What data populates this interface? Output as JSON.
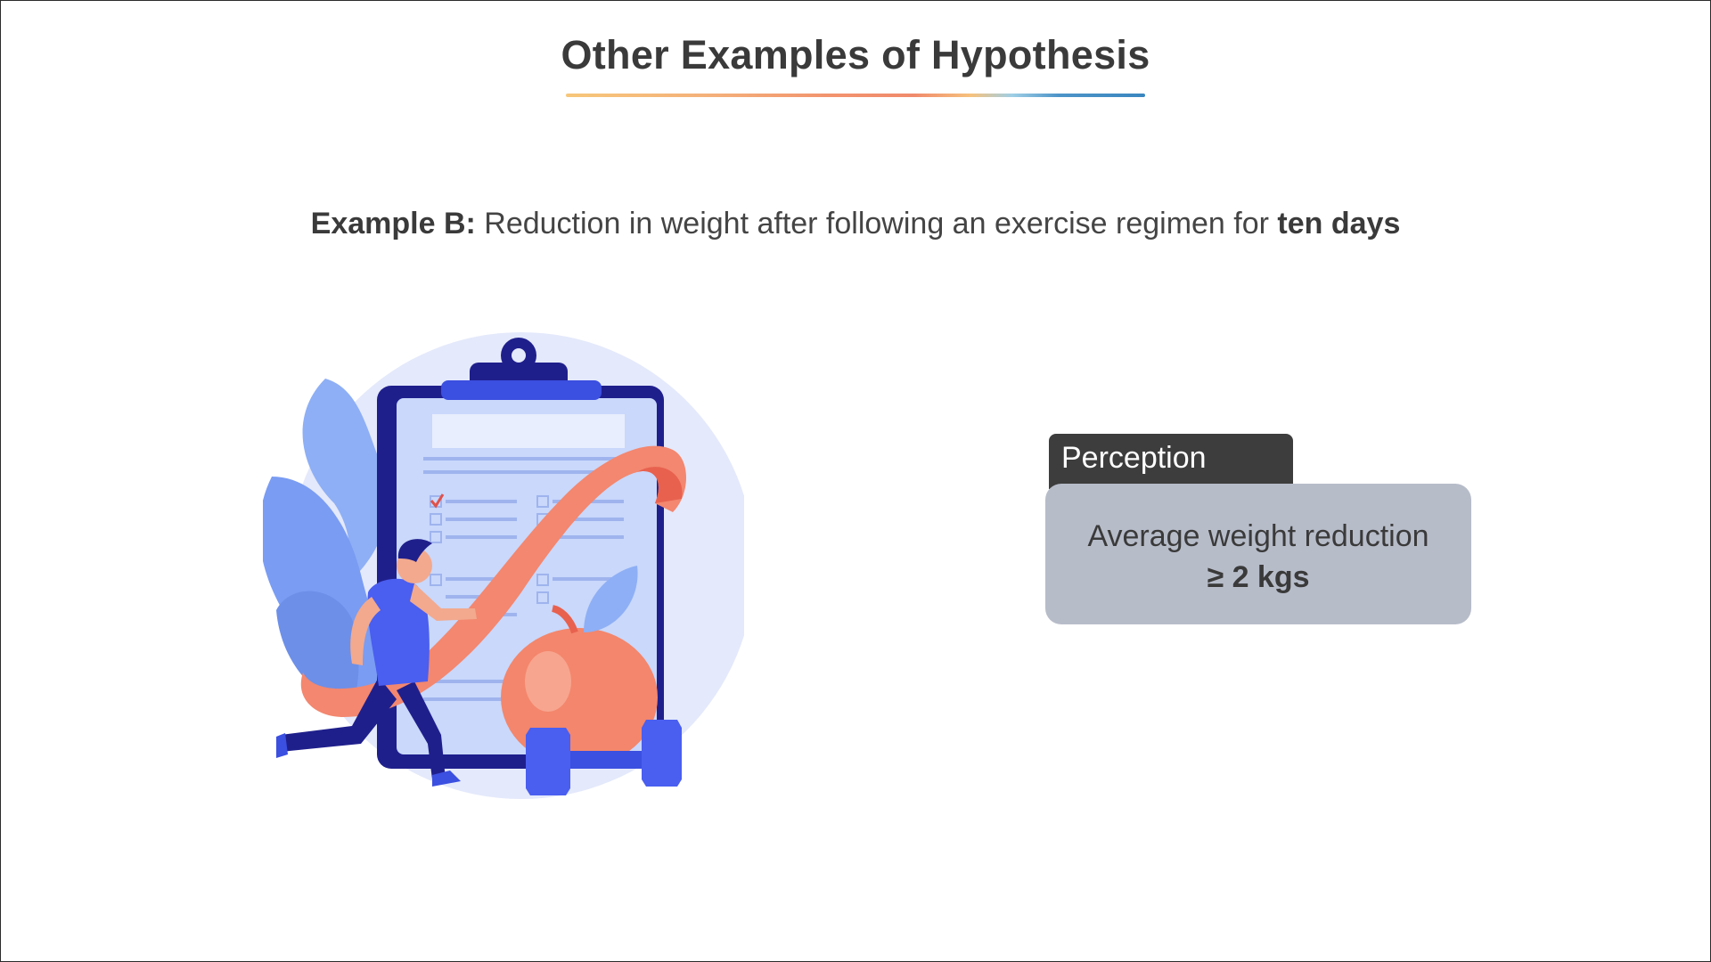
{
  "slide": {
    "title": "Other Examples of Hypothesis",
    "example": {
      "label": "Example B:",
      "text": " Reduction in weight after following an exercise regimen for ",
      "emphasis": "ten days"
    },
    "illustration_icon": "fitness-clipboard-runner-apple-dumbbell-illustration",
    "perception": {
      "tab_label": "Perception",
      "line1": "Average weight reduction",
      "line2": "≥ 2 kgs"
    },
    "colors": {
      "title": "#3a3a3a",
      "tab_background": "#3d3d3d",
      "box_background": "#b7bcc9",
      "accent_orange": "#f08a6c",
      "accent_blue": "#3a86c0"
    }
  }
}
